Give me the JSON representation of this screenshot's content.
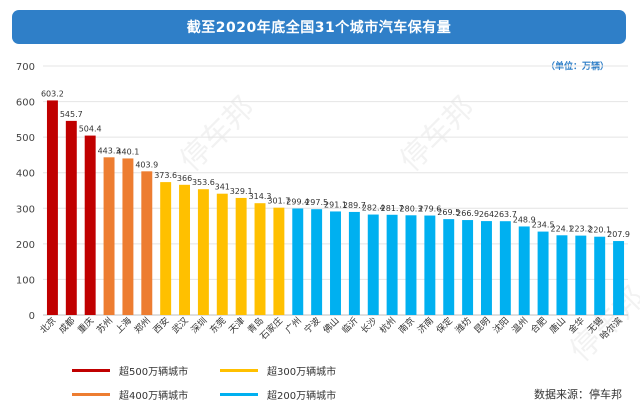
{
  "title": "截至2020年底全国31个城市汽车保有量",
  "unit": "（单位：万辆）",
  "source": "数据来源：停车邦",
  "watermark": "停车邦",
  "colors": {
    "red": "#c00000",
    "orange": "#ed7d31",
    "yellow": "#ffc000",
    "blue": "#00b0f0"
  },
  "legend": [
    {
      "label": "超500万辆城市",
      "color": "red"
    },
    {
      "label": "超300万辆城市",
      "color": "yellow"
    },
    {
      "label": "超400万辆城市",
      "color": "orange"
    },
    {
      "label": "超200万辆城市",
      "color": "blue"
    }
  ],
  "chart_data": {
    "type": "bar",
    "title": "截至2020年底全国31个城市汽车保有量",
    "ylabel": "（单位：万辆）",
    "ylim": [
      0,
      700
    ],
    "yticks": [
      0,
      100,
      200,
      300,
      400,
      500,
      600,
      700
    ],
    "grid": true,
    "categories": [
      "北京",
      "成都",
      "重庆",
      "苏州",
      "上海",
      "郑州",
      "西安",
      "武汉",
      "深圳",
      "东莞",
      "天津",
      "青岛",
      "石家庄",
      "广州",
      "宁波",
      "佛山",
      "临沂",
      "长沙",
      "杭州",
      "南京",
      "济南",
      "保定",
      "潍坊",
      "昆明",
      "沈阳",
      "温州",
      "合肥",
      "唐山",
      "金华",
      "无锡",
      "哈尔滨"
    ],
    "values": [
      603.2,
      545.7,
      504.4,
      443.3,
      440.1,
      403.9,
      373.6,
      366,
      353.6,
      341,
      329.1,
      314.3,
      301.7,
      299.4,
      297.5,
      291.1,
      289.7,
      282.4,
      281.7,
      280.3,
      279.6,
      269.5,
      266.9,
      264,
      263.7,
      248.9,
      234.5,
      224.1,
      223.2,
      220.1,
      207.9
    ],
    "value_labels": [
      "603.2",
      "545.7",
      "504.4",
      "443.3",
      "440.1",
      "403.9",
      "373.6",
      "366",
      "353.6",
      "341",
      "329.1",
      "314.3",
      "301.7",
      "299.4",
      "297.5",
      "291.1",
      "289.7",
      "282.4",
      "281.7",
      "280.3",
      "279.6",
      "269.5",
      "266.9",
      "264",
      "263.7",
      "248.9",
      "234.5",
      "224.1",
      "223.2",
      "220.1",
      "207.9"
    ],
    "bar_colors": [
      "red",
      "red",
      "red",
      "orange",
      "orange",
      "orange",
      "yellow",
      "yellow",
      "yellow",
      "yellow",
      "yellow",
      "yellow",
      "yellow",
      "blue",
      "blue",
      "blue",
      "blue",
      "blue",
      "blue",
      "blue",
      "blue",
      "blue",
      "blue",
      "blue",
      "blue",
      "blue",
      "blue",
      "blue",
      "blue",
      "blue",
      "blue"
    ]
  }
}
